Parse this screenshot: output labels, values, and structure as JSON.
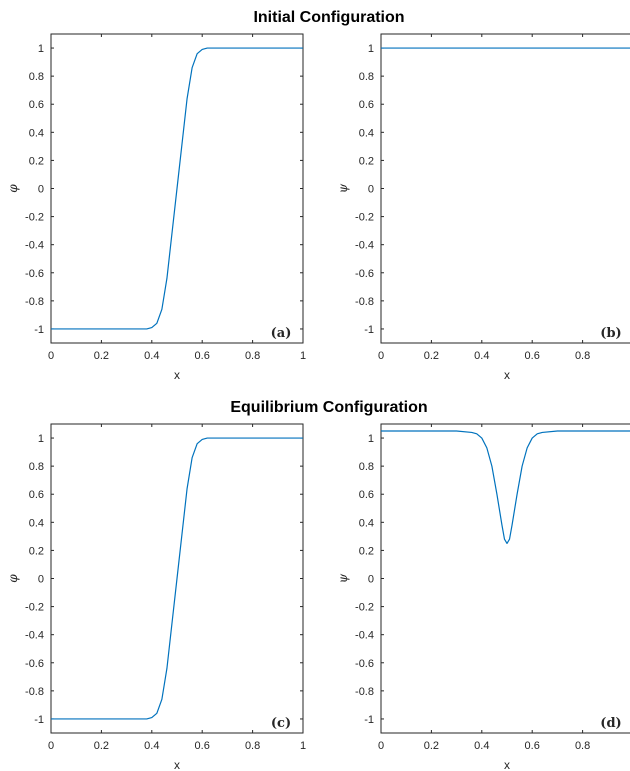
{
  "figure": {
    "titles": [
      "Initial Configuration",
      "Equilibrium Configuration"
    ]
  },
  "chart_data": [
    {
      "type": "line",
      "panel_label": "(a)",
      "xlabel": "x",
      "ylabel": "φ",
      "xlim": [
        0,
        1
      ],
      "ylim": [
        -1.1,
        1.1
      ],
      "xticks": [
        "0",
        "0.2",
        "0.4",
        "0.6",
        "0.8",
        "1"
      ],
      "yticks": [
        "-1",
        "-0.8",
        "-0.6",
        "-0.4",
        "-0.2",
        "0",
        "0.2",
        "0.4",
        "0.6",
        "0.8",
        "1"
      ],
      "color": "#0072BD",
      "series": [
        {
          "x": [
            0,
            0.1,
            0.2,
            0.3,
            0.38,
            0.4,
            0.42,
            0.44,
            0.46,
            0.48,
            0.5,
            0.52,
            0.54,
            0.56,
            0.58,
            0.6,
            0.62,
            0.7,
            0.8,
            0.9,
            1
          ],
          "y": [
            -1,
            -1,
            -1,
            -1,
            -1,
            -0.99,
            -0.96,
            -0.86,
            -0.64,
            -0.32,
            0,
            0.32,
            0.64,
            0.86,
            0.96,
            0.99,
            1,
            1,
            1,
            1,
            1
          ]
        }
      ]
    },
    {
      "type": "line",
      "panel_label": "(b)",
      "xlabel": "x",
      "ylabel": "ψ",
      "xlim": [
        0,
        1
      ],
      "ylim": [
        -1.1,
        1.1
      ],
      "xticks": [
        "0",
        "0.2",
        "0.4",
        "0.6",
        "0.8"
      ],
      "yticks": [
        "-1",
        "-0.8",
        "-0.6",
        "-0.4",
        "-0.2",
        "0",
        "0.2",
        "0.4",
        "0.6",
        "0.8",
        "1"
      ],
      "color": "#0072BD",
      "series": [
        {
          "x": [
            0,
            0.2,
            0.4,
            0.6,
            0.8,
            1
          ],
          "y": [
            1,
            1,
            1,
            1,
            1,
            1
          ]
        }
      ]
    },
    {
      "type": "line",
      "panel_label": "(c)",
      "xlabel": "x",
      "ylabel": "φ",
      "xlim": [
        0,
        1
      ],
      "ylim": [
        -1.1,
        1.1
      ],
      "xticks": [
        "0",
        "0.2",
        "0.4",
        "0.6",
        "0.8",
        "1"
      ],
      "yticks": [
        "-1",
        "-0.8",
        "-0.6",
        "-0.4",
        "-0.2",
        "0",
        "0.2",
        "0.4",
        "0.6",
        "0.8",
        "1"
      ],
      "color": "#0072BD",
      "series": [
        {
          "x": [
            0,
            0.1,
            0.2,
            0.3,
            0.38,
            0.4,
            0.42,
            0.44,
            0.46,
            0.48,
            0.5,
            0.52,
            0.54,
            0.56,
            0.58,
            0.6,
            0.62,
            0.7,
            0.8,
            0.9,
            1
          ],
          "y": [
            -1,
            -1,
            -1,
            -1,
            -1,
            -0.99,
            -0.96,
            -0.86,
            -0.64,
            -0.32,
            0,
            0.32,
            0.64,
            0.86,
            0.96,
            0.99,
            1,
            1,
            1,
            1,
            1
          ]
        }
      ]
    },
    {
      "type": "line",
      "panel_label": "(d)",
      "xlabel": "x",
      "ylabel": "ψ",
      "xlim": [
        0,
        1
      ],
      "ylim": [
        -1.1,
        1.1
      ],
      "xticks": [
        "0",
        "0.2",
        "0.4",
        "0.6",
        "0.8"
      ],
      "yticks": [
        "-1",
        "-0.8",
        "-0.6",
        "-0.4",
        "-0.2",
        "0",
        "0.2",
        "0.4",
        "0.6",
        "0.8",
        "1"
      ],
      "color": "#0072BD",
      "series": [
        {
          "x": [
            0,
            0.1,
            0.2,
            0.3,
            0.36,
            0.38,
            0.4,
            0.42,
            0.44,
            0.46,
            0.48,
            0.49,
            0.5,
            0.51,
            0.52,
            0.54,
            0.56,
            0.58,
            0.6,
            0.62,
            0.64,
            0.7,
            0.8,
            0.9,
            1
          ],
          "y": [
            1.05,
            1.05,
            1.05,
            1.05,
            1.04,
            1.03,
            1.0,
            0.93,
            0.8,
            0.6,
            0.38,
            0.28,
            0.25,
            0.28,
            0.38,
            0.6,
            0.8,
            0.93,
            1.0,
            1.03,
            1.04,
            1.05,
            1.05,
            1.05,
            1.05
          ]
        }
      ]
    }
  ]
}
